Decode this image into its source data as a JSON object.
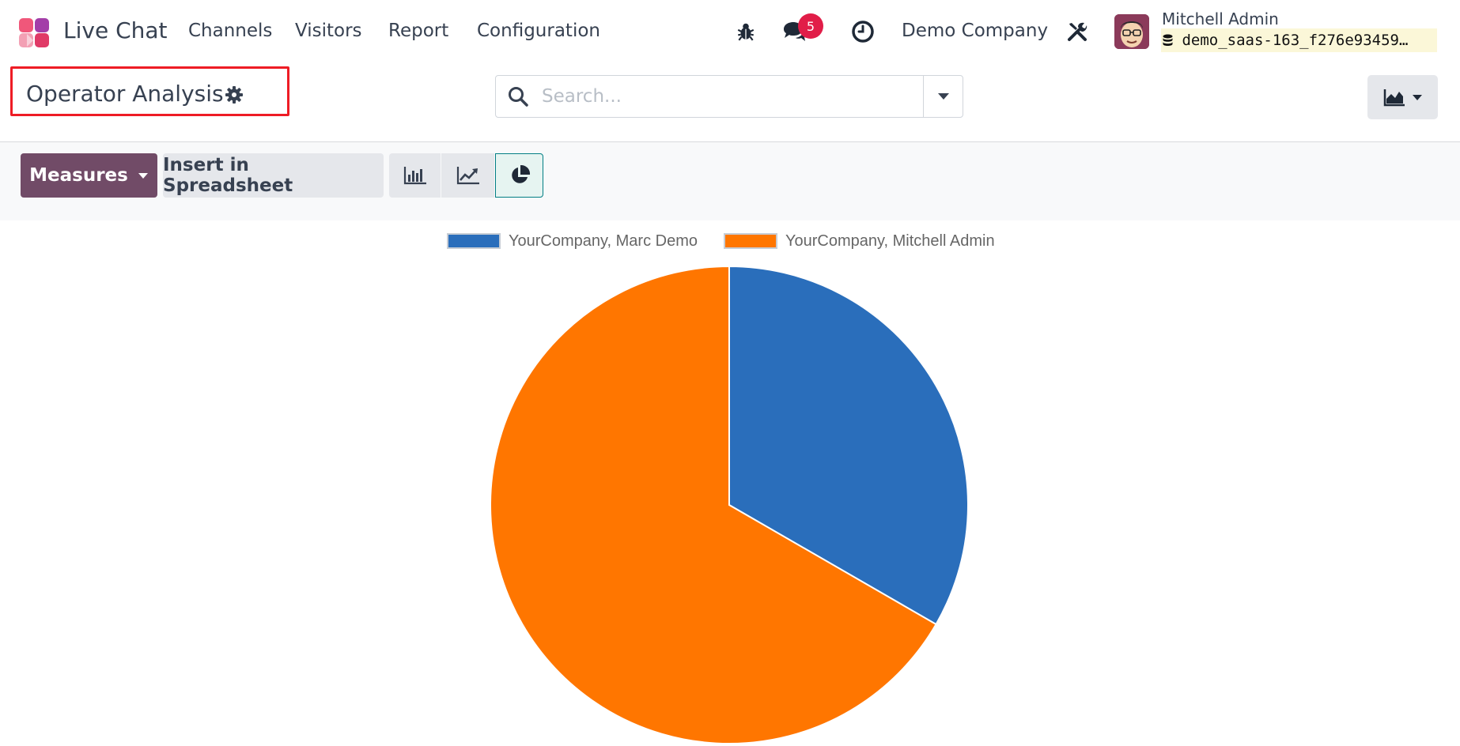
{
  "navbar": {
    "app_name": "Live Chat",
    "menu": [
      "Channels",
      "Visitors",
      "Report",
      "Configuration"
    ],
    "messages_count": "5",
    "company": "Demo Company",
    "user_name": "Mitchell Admin",
    "database": "demo_saas-163_f276e93459…",
    "icons": [
      "bug-icon",
      "chat-icon",
      "clock-icon",
      "tools-icon"
    ]
  },
  "control_panel": {
    "title": "Operator Analysis",
    "search_placeholder": "Search...",
    "view_switch_icon": "area-chart-icon"
  },
  "toolbar": {
    "measures_label": "Measures",
    "spreadsheet_label": "Insert in Spreadsheet",
    "modes": [
      "bar",
      "line",
      "pie"
    ],
    "active_mode": "pie"
  },
  "colors": {
    "brand": "#714b67",
    "series_1": "#2a6ebb",
    "series_2": "#ff7600",
    "highlight": "#ee1c25"
  },
  "chart_data": {
    "type": "pie",
    "legend_position": "top",
    "series": [
      {
        "name": "YourCompany, Marc Demo",
        "value": 1,
        "color": "#2a6ebb"
      },
      {
        "name": "YourCompany, Mitchell Admin",
        "value": 2,
        "color": "#ff7600"
      }
    ]
  }
}
